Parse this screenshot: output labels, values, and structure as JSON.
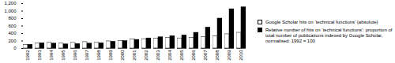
{
  "chart_data": {
    "type": "bar",
    "categories": [
      "1992",
      "1993",
      "1994",
      "1995",
      "1996",
      "1997",
      "1998",
      "1999",
      "2000",
      "2001",
      "2002",
      "2003",
      "2004",
      "2005",
      "2006",
      "2007",
      "2008",
      "2009",
      "2010"
    ],
    "series": [
      {
        "name": "Google Scholar hits on ‘technical functions’ (absolute)",
        "color": "#ffffff",
        "values": [
          100,
          130,
          150,
          130,
          150,
          170,
          150,
          190,
          200,
          240,
          250,
          260,
          280,
          270,
          280,
          300,
          330,
          380,
          420
        ]
      },
      {
        "name": "Relative number of hits on ‘technical functions’: proportion of total number of publications indexed by Google Scholar, normalised: 1992 = 100",
        "color": "#000000",
        "values": [
          100,
          140,
          130,
          110,
          120,
          130,
          140,
          180,
          200,
          230,
          270,
          300,
          330,
          350,
          420,
          560,
          800,
          1050,
          1100
        ]
      }
    ],
    "ylim": [
      0,
      1200
    ],
    "yticks": [
      0,
      200,
      400,
      600,
      800,
      1000,
      1200
    ],
    "legend": "right",
    "grid": false
  }
}
